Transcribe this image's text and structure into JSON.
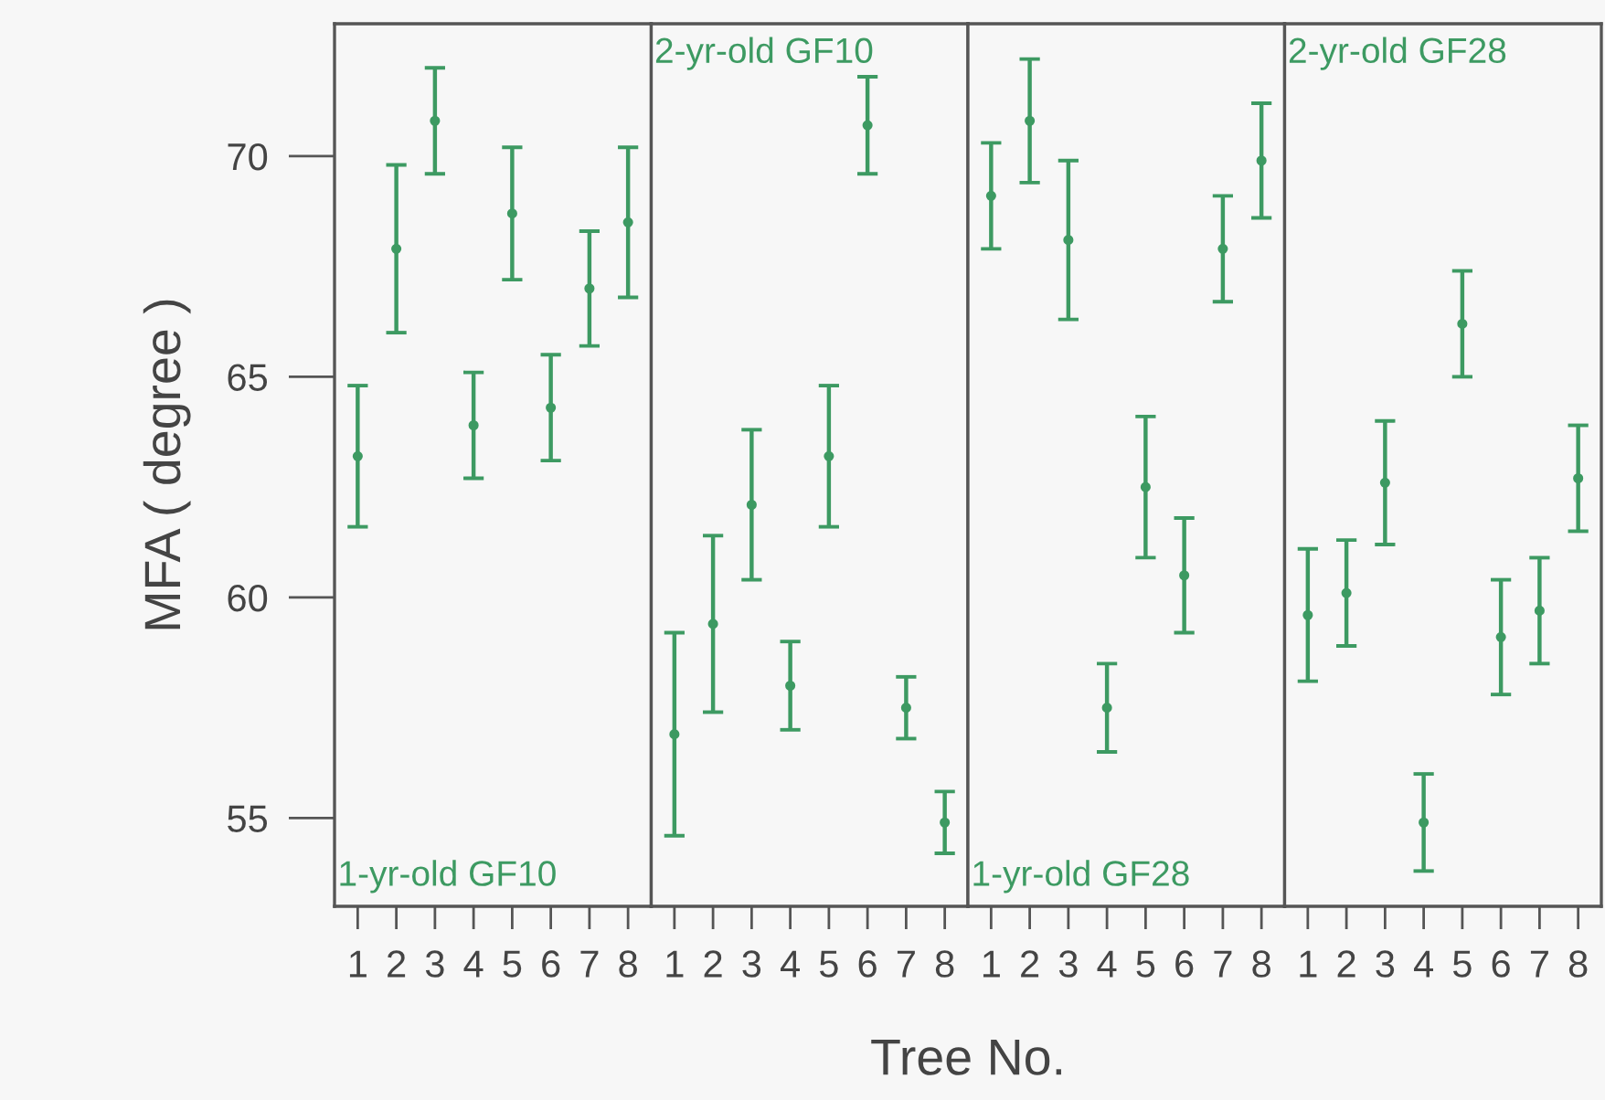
{
  "chart_data": [
    {
      "type": "scatter",
      "xlabel": "Tree No.",
      "ylabel": "MFA ( degree )",
      "categories": [
        "1",
        "2",
        "3",
        "4",
        "5",
        "6",
        "7",
        "8"
      ],
      "annotations": [
        "1-yr-old GF10"
      ],
      "ylim": [
        53,
        73
      ],
      "yticks": [
        55,
        60,
        65,
        70
      ],
      "marker": "circle",
      "grid": false,
      "legend": false,
      "series": [
        {
          "color": "#3d9a62",
          "values": [
            63.2,
            67.9,
            70.8,
            63.9,
            68.7,
            64.3,
            67.0,
            68.5
          ],
          "errors": [
            1.6,
            1.9,
            1.2,
            1.2,
            1.5,
            1.2,
            1.3,
            1.7
          ]
        }
      ]
    },
    {
      "type": "scatter",
      "categories": [
        "1",
        "2",
        "3",
        "4",
        "5",
        "6",
        "7",
        "8"
      ],
      "annotations": [
        "2-yr-old GF10"
      ],
      "ylim": [
        53,
        73
      ],
      "tick_labels": "x",
      "marker": "circle",
      "grid": false,
      "legend": false,
      "series": [
        {
          "color": "#3d9a62",
          "values": [
            56.9,
            59.4,
            62.1,
            58.0,
            63.2,
            70.7,
            57.5,
            54.9
          ],
          "errors": [
            2.3,
            2.0,
            1.7,
            1.0,
            1.6,
            1.1,
            0.7,
            0.7
          ]
        }
      ]
    },
    {
      "type": "scatter",
      "categories": [
        "1",
        "2",
        "3",
        "4",
        "5",
        "6",
        "7",
        "8"
      ],
      "annotations": [
        "1-yr-old GF28"
      ],
      "ylim": [
        53,
        73
      ],
      "tick_labels": "x",
      "marker": "circle",
      "grid": false,
      "legend": false,
      "series": [
        {
          "color": "#3d9a62",
          "values": [
            69.1,
            70.8,
            68.1,
            57.5,
            62.5,
            60.5,
            67.9,
            69.9
          ],
          "errors": [
            1.2,
            1.4,
            1.8,
            1.0,
            1.6,
            1.3,
            1.2,
            1.3
          ]
        }
      ]
    },
    {
      "type": "scatter",
      "categories": [
        "1",
        "2",
        "3",
        "4",
        "5",
        "6",
        "7",
        "8"
      ],
      "annotations": [
        "2-yr-old GF28"
      ],
      "ylim": [
        53,
        73
      ],
      "tick_labels": "x",
      "marker": "circle",
      "grid": false,
      "legend": false,
      "series": [
        {
          "color": "#3d9a62",
          "values": [
            59.6,
            60.1,
            62.6,
            54.9,
            66.2,
            59.1,
            59.7,
            62.7
          ],
          "errors": [
            1.5,
            1.2,
            1.4,
            1.1,
            1.2,
            1.3,
            1.2,
            1.2
          ]
        }
      ]
    }
  ]
}
